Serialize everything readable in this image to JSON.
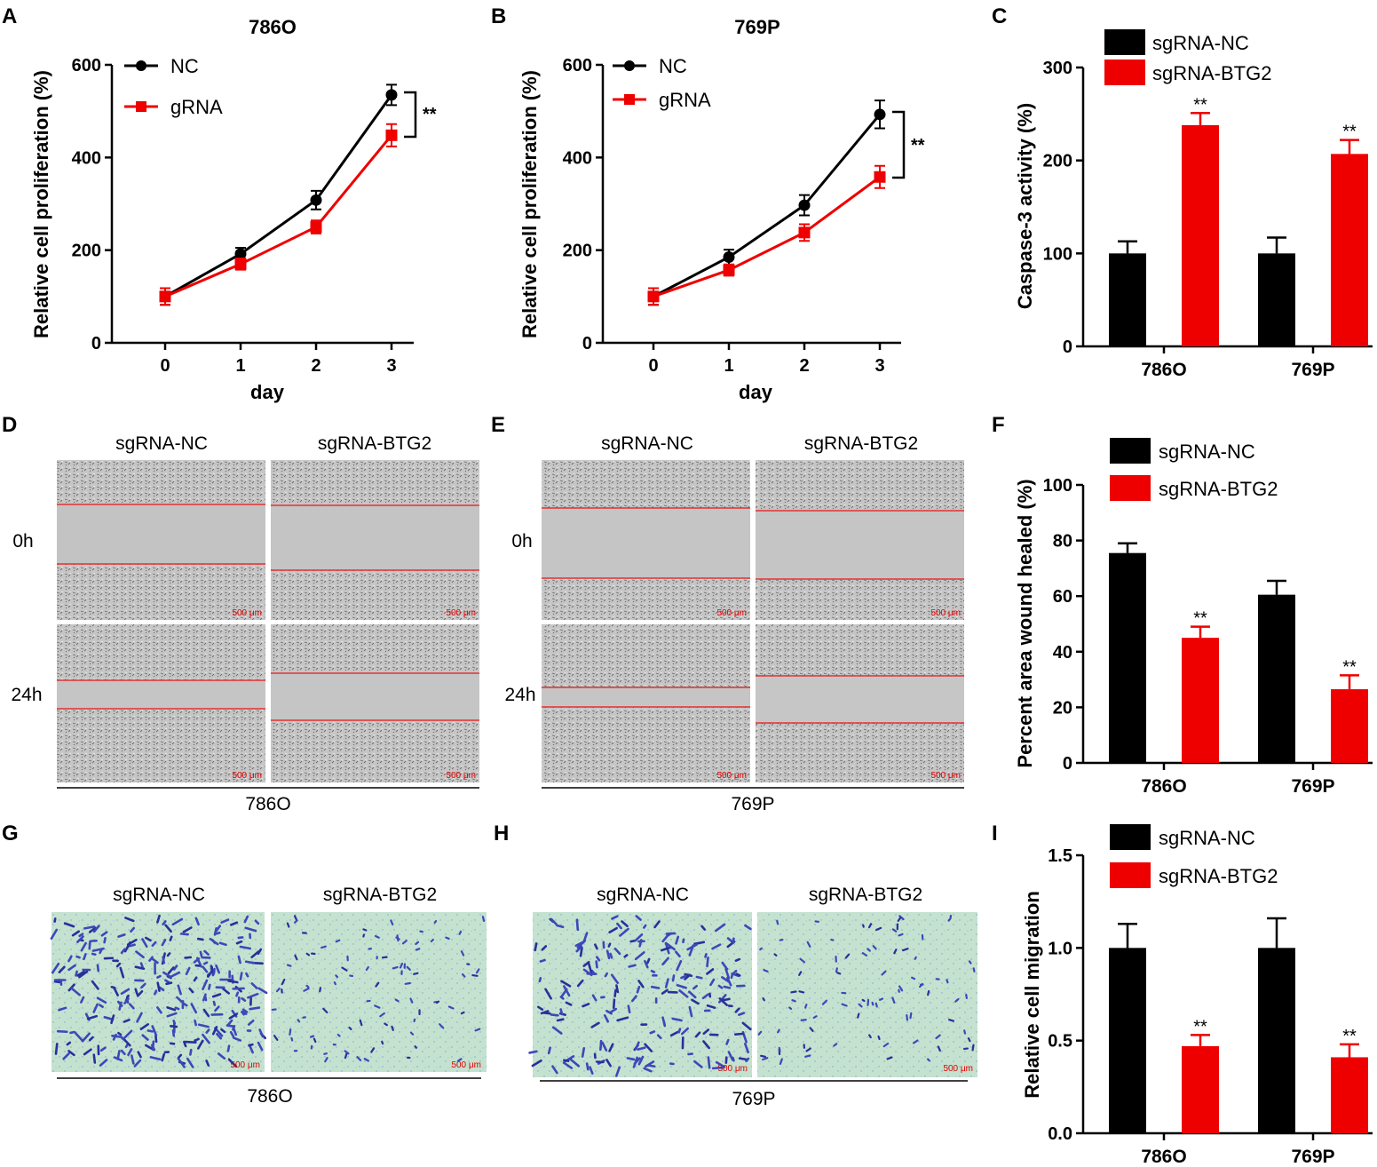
{
  "panels": {
    "A": {
      "letter": "A",
      "title": "786O",
      "ylabel": "Relative cell proliferation (%)",
      "xlabel": "day",
      "sig": "**",
      "legend": [
        {
          "label": "NC",
          "color": "#000000"
        },
        {
          "label": "gRNA",
          "color": "#ee0000"
        }
      ]
    },
    "B": {
      "letter": "B",
      "title": "769P",
      "ylabel": "Relative cell proliferation (%)",
      "xlabel": "day",
      "sig": "**",
      "legend": [
        {
          "label": "NC",
          "color": "#000000"
        },
        {
          "label": "gRNA",
          "color": "#ee0000"
        }
      ]
    },
    "C": {
      "letter": "C",
      "ylabel": "Caspase-3 activity (%)",
      "legend": [
        {
          "label": "sgRNA-NC",
          "color": "#000000"
        },
        {
          "label": "sgRNA-BTG2",
          "color": "#ee0000"
        }
      ]
    },
    "D": {
      "letter": "D",
      "col1": "sgRNA-NC",
      "col2": "sgRNA-BTG2",
      "row1": "0h",
      "row2": "24h",
      "cell_line": "786O",
      "scale": "500 μm"
    },
    "E": {
      "letter": "E",
      "col1": "sgRNA-NC",
      "col2": "sgRNA-BTG2",
      "row1": "0h",
      "row2": "24h",
      "cell_line": "769P",
      "scale": "500 μm"
    },
    "F": {
      "letter": "F",
      "ylabel": "Percent area wound healed (%)",
      "legend": [
        {
          "label": "sgRNA-NC",
          "color": "#000000"
        },
        {
          "label": "sgRNA-BTG2",
          "color": "#ee0000"
        }
      ]
    },
    "G": {
      "letter": "G",
      "col1": "sgRNA-NC",
      "col2": "sgRNA-BTG2",
      "cell_line": "786O",
      "scale": "500 μm"
    },
    "H": {
      "letter": "H",
      "col1": "sgRNA-NC",
      "col2": "sgRNA-BTG2",
      "cell_line": "769P",
      "scale": "500 μm"
    },
    "I": {
      "letter": "I",
      "ylabel": "Relative cell migration",
      "legend": [
        {
          "label": "sgRNA-NC",
          "color": "#000000"
        },
        {
          "label": "sgRNA-BTG2",
          "color": "#ee0000"
        }
      ]
    }
  },
  "chart_data": [
    {
      "id": "A",
      "type": "line",
      "title": "786O",
      "xlabel": "day",
      "ylabel": "Relative cell proliferation (%)",
      "x": [
        0,
        1,
        2,
        3
      ],
      "ylim": [
        0,
        600
      ],
      "yticks": [
        0,
        200,
        400,
        600
      ],
      "xticks": [
        0,
        1,
        2,
        3
      ],
      "series": [
        {
          "name": "NC",
          "color": "#000000",
          "marker": "circle",
          "values": [
            100,
            192,
            308,
            535
          ],
          "errors": [
            18,
            13,
            20,
            22
          ]
        },
        {
          "name": "gRNA",
          "color": "#ee0000",
          "marker": "square",
          "values": [
            100,
            170,
            250,
            448
          ],
          "errors": [
            18,
            12,
            14,
            24
          ]
        }
      ],
      "significance": "**"
    },
    {
      "id": "B",
      "type": "line",
      "title": "769P",
      "xlabel": "day",
      "ylabel": "Relative cell proliferation (%)",
      "x": [
        0,
        1,
        2,
        3
      ],
      "ylim": [
        0,
        600
      ],
      "yticks": [
        0,
        200,
        400,
        600
      ],
      "xticks": [
        0,
        1,
        2,
        3
      ],
      "series": [
        {
          "name": "NC",
          "color": "#000000",
          "marker": "circle",
          "values": [
            100,
            185,
            297,
            493
          ],
          "errors": [
            18,
            16,
            22,
            30
          ]
        },
        {
          "name": "gRNA",
          "color": "#ee0000",
          "marker": "square",
          "values": [
            100,
            157,
            238,
            358
          ],
          "errors": [
            18,
            12,
            18,
            24
          ]
        }
      ],
      "significance": "**"
    },
    {
      "id": "C",
      "type": "bar",
      "ylabel": "Caspase-3 activity (%)",
      "categories": [
        "786O",
        "769P"
      ],
      "ylim": [
        0,
        300
      ],
      "yticks": [
        0,
        100,
        200,
        300
      ],
      "series": [
        {
          "name": "sgRNA-NC",
          "color": "#000000",
          "values": [
            100,
            100
          ],
          "errors": [
            13,
            17
          ]
        },
        {
          "name": "sgRNA-BTG2",
          "color": "#ee0000",
          "values": [
            238,
            207
          ],
          "errors": [
            13,
            15
          ]
        }
      ],
      "annotations": [
        "**",
        "**"
      ]
    },
    {
      "id": "F",
      "type": "bar",
      "ylabel": "Percent area wound healed (%)",
      "categories": [
        "786O",
        "769P"
      ],
      "ylim": [
        0,
        100
      ],
      "yticks": [
        0,
        20,
        40,
        60,
        80,
        100
      ],
      "series": [
        {
          "name": "sgRNA-NC",
          "color": "#000000",
          "values": [
            75.5,
            60.5
          ],
          "errors": [
            3.5,
            5
          ]
        },
        {
          "name": "sgRNA-BTG2",
          "color": "#ee0000",
          "values": [
            45,
            26.5
          ],
          "errors": [
            4,
            5
          ]
        }
      ],
      "annotations": [
        "**",
        "**"
      ]
    },
    {
      "id": "I",
      "type": "bar",
      "ylabel": "Relative cell migration",
      "categories": [
        "786O",
        "769P"
      ],
      "ylim": [
        0,
        1.5
      ],
      "yticks": [
        "0.0",
        "0.5",
        "1.0",
        "1.5"
      ],
      "ytick_values": [
        0,
        0.5,
        1.0,
        1.5
      ],
      "series": [
        {
          "name": "sgRNA-NC",
          "color": "#000000",
          "values": [
            1.0,
            1.0
          ],
          "errors": [
            0.13,
            0.16
          ]
        },
        {
          "name": "sgRNA-BTG2",
          "color": "#ee0000",
          "values": [
            0.47,
            0.41
          ],
          "errors": [
            0.06,
            0.07
          ]
        }
      ],
      "annotations": [
        "**",
        "**"
      ]
    }
  ]
}
